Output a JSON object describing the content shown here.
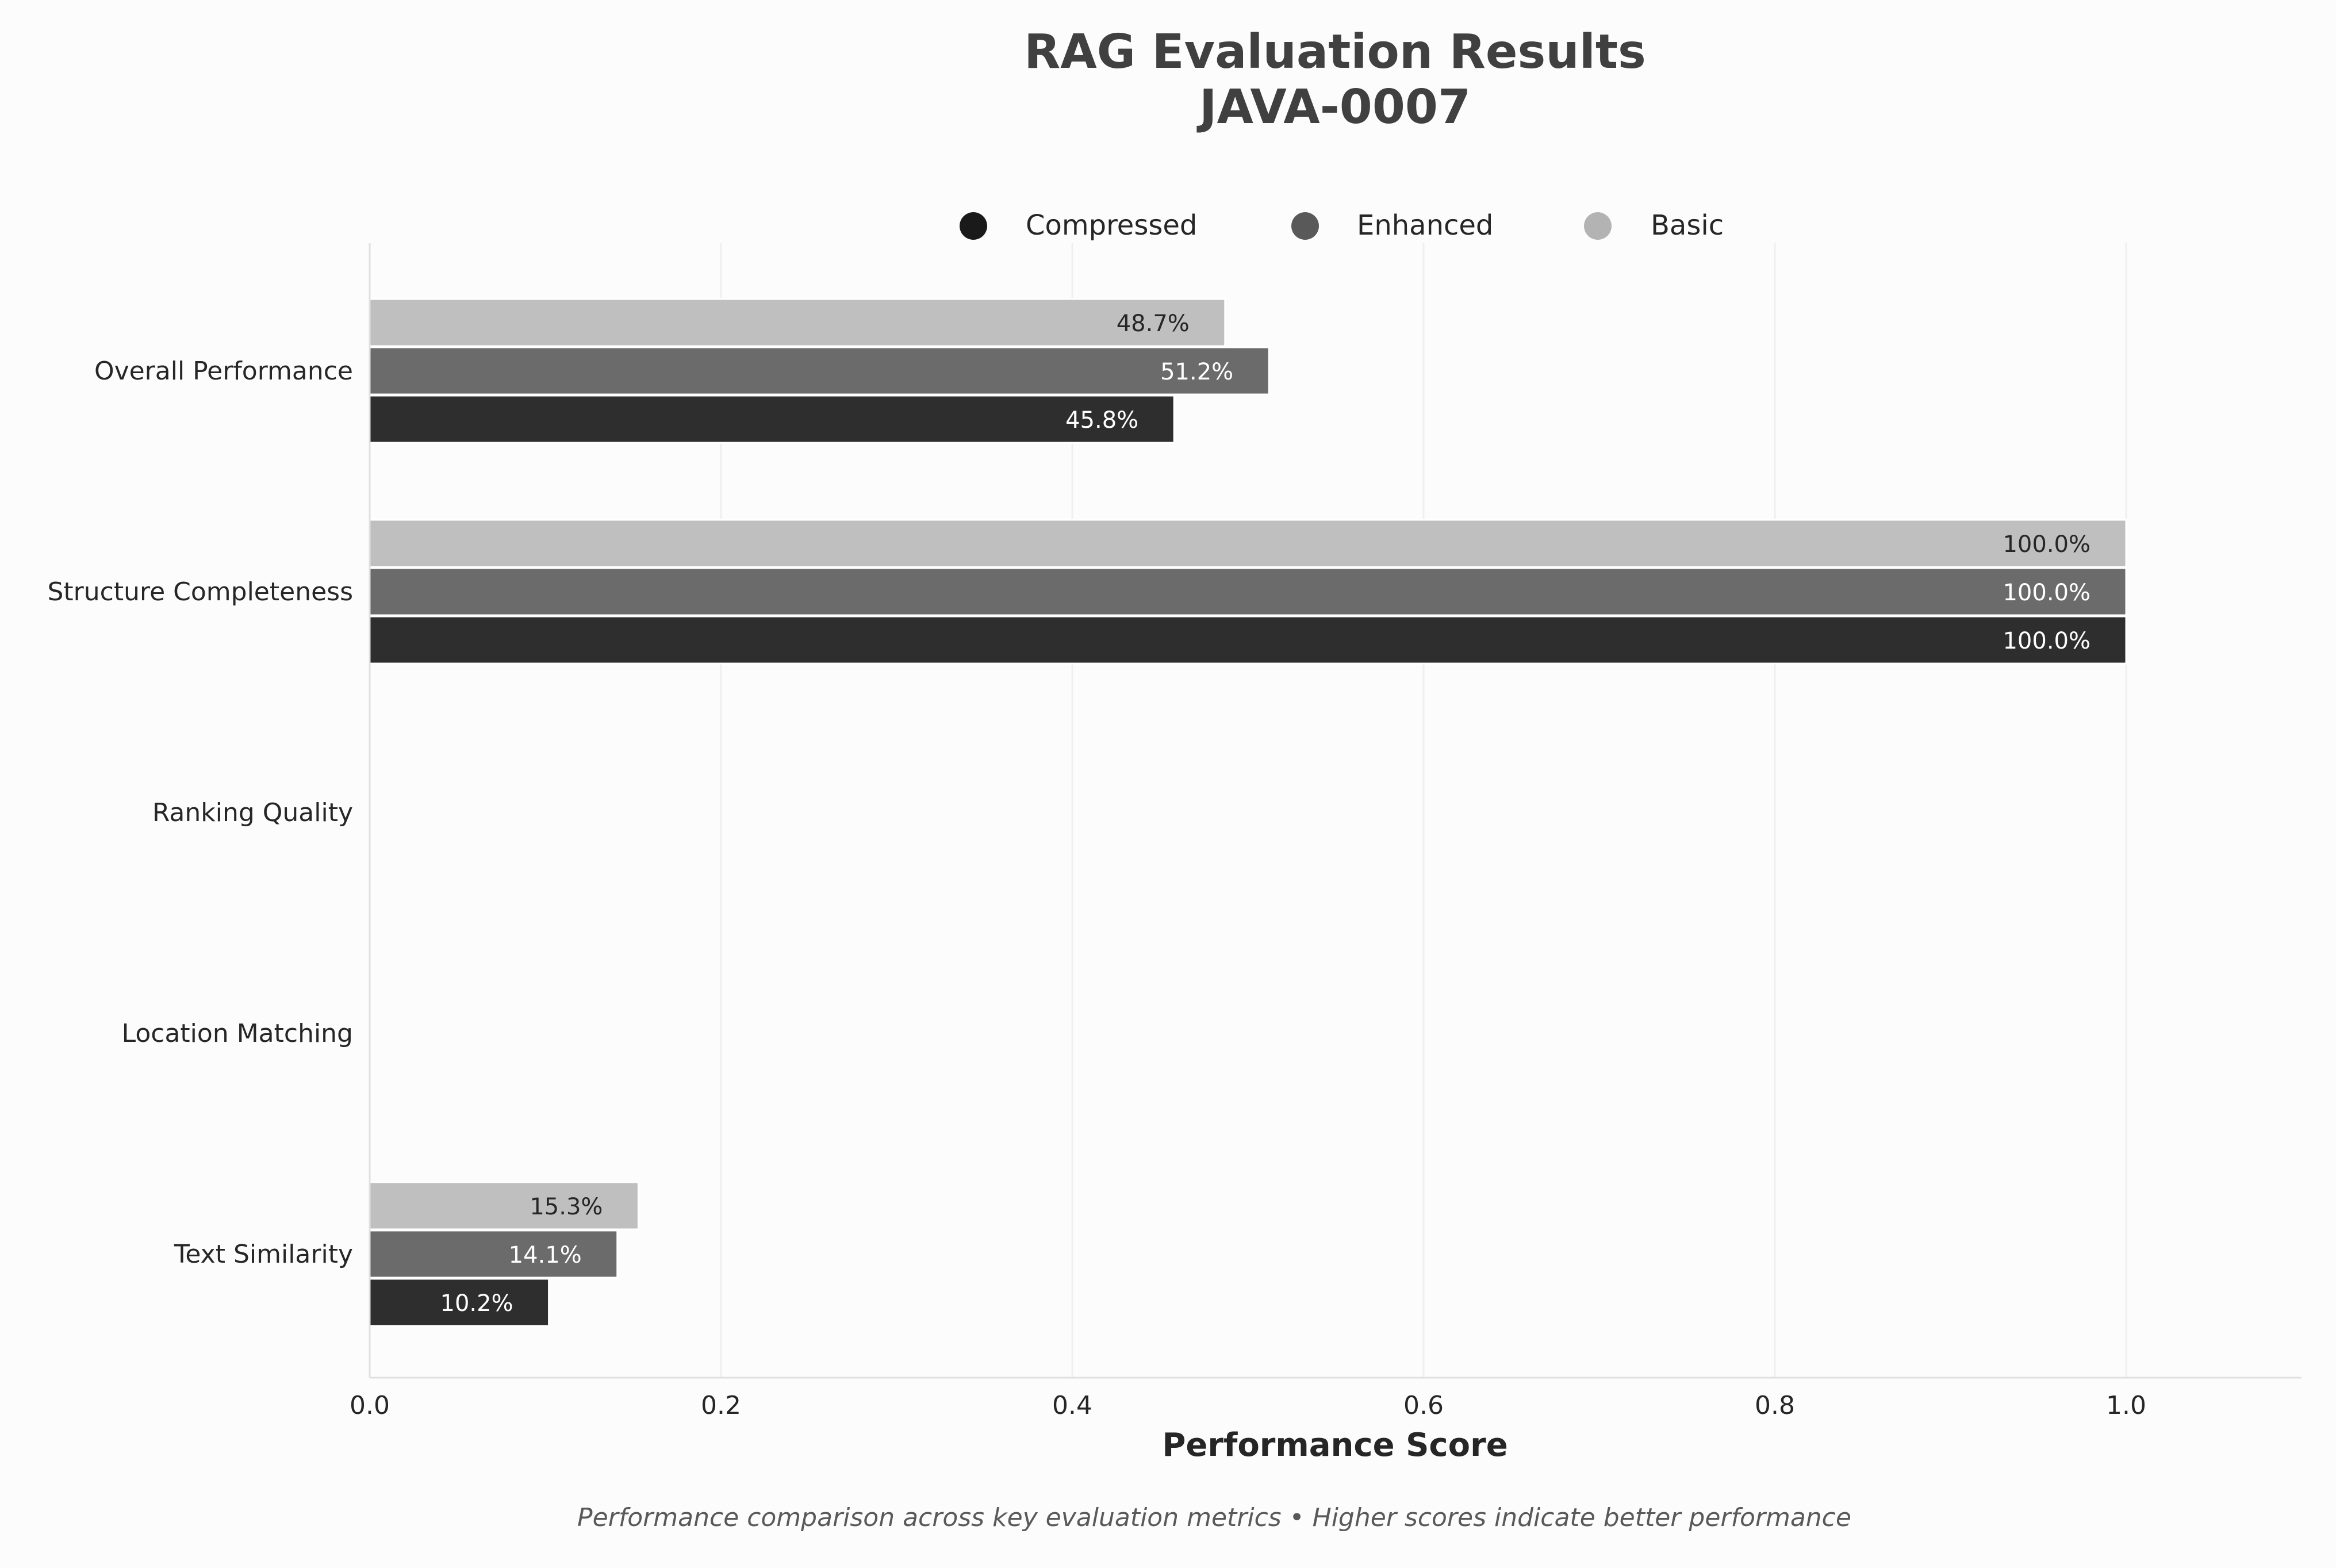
{
  "chart_data": {
    "type": "bar",
    "orientation": "horizontal",
    "title": "RAG Evaluation Results",
    "subtitle": "JAVA-0007",
    "xlabel": "Performance Score",
    "ylabel": "",
    "xlim": [
      0,
      1.1
    ],
    "x_ticks": [
      "0.0",
      "0.2",
      "0.4",
      "0.6",
      "0.8",
      "1.0"
    ],
    "x_tick_values": [
      0,
      0.2,
      0.4,
      0.6,
      0.8,
      1.0
    ],
    "grid": true,
    "legend_placement": "top",
    "categories": [
      "Overall Performance",
      "Structure Completeness",
      "Ranking Quality",
      "Location Matching",
      "Text Similarity"
    ],
    "series": [
      {
        "name": "Compressed",
        "color": "#2e2e2e",
        "label_color": "#ffffff",
        "values": [
          0.458,
          1.0,
          0.0,
          0.0,
          0.102
        ],
        "labels": [
          "45.8%",
          "100.0%",
          "",
          "",
          "10.2%"
        ]
      },
      {
        "name": "Enhanced",
        "color": "#6b6b6b",
        "label_color": "#ffffff",
        "values": [
          0.512,
          1.0,
          0.0,
          0.0,
          0.141
        ],
        "labels": [
          "51.2%",
          "100.0%",
          "",
          "",
          "14.1%"
        ]
      },
      {
        "name": "Basic",
        "color": "#bfbfbf",
        "label_color": "#262626",
        "values": [
          0.487,
          1.0,
          0.0,
          0.0,
          0.153
        ],
        "labels": [
          "48.7%",
          "100.0%",
          "",
          "",
          "15.3%"
        ]
      }
    ],
    "legend_colors": [
      "#1a1a1a",
      "#595959",
      "#b3b3b3"
    ],
    "caption": "Performance comparison across key evaluation metrics • Higher scores indicate better performance"
  }
}
